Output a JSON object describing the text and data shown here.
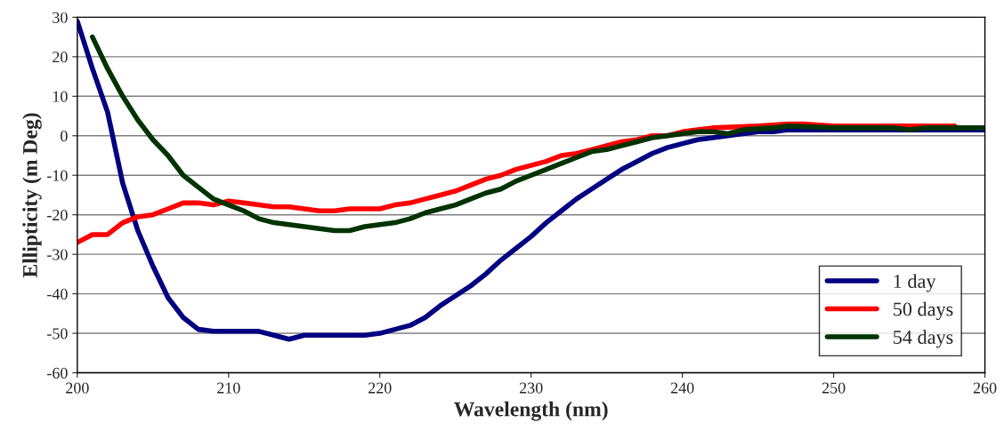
{
  "chart_data": {
    "type": "line",
    "xlabel": "Wavelength (nm)",
    "ylabel": "Ellipticity (m Deg)",
    "xlim": [
      200,
      260
    ],
    "xticks": [
      200,
      210,
      220,
      230,
      240,
      250,
      260
    ],
    "ylim": [
      -60,
      30
    ],
    "yticks": [
      -60,
      -50,
      -40,
      -30,
      -20,
      -10,
      0,
      10,
      20,
      30
    ],
    "grid": "y",
    "legend": "bottom right",
    "line_style": "solid",
    "marker": "none",
    "series": [
      {
        "name": "1 day",
        "color": "#000080",
        "x": [
          200,
          201,
          202,
          203,
          204,
          205,
          206,
          207,
          208,
          209,
          210,
          211,
          212,
          213,
          214,
          215,
          216,
          217,
          218,
          219,
          220,
          221,
          222,
          223,
          224,
          225,
          226,
          227,
          228,
          229,
          230,
          231,
          232,
          233,
          234,
          235,
          236,
          237,
          238,
          239,
          240,
          241,
          242,
          243,
          244,
          245,
          246,
          247,
          248,
          250,
          255,
          258,
          260
        ],
        "values": [
          29,
          17,
          6,
          -12,
          -24,
          -33,
          -41,
          -46,
          -49,
          -49.5,
          -49.5,
          -49.5,
          -49.5,
          -50.5,
          -51.5,
          -50.5,
          -50.5,
          -50.5,
          -50.5,
          -50.5,
          -50,
          -49,
          -48,
          -46,
          -43,
          -40.5,
          -38,
          -35,
          -31.5,
          -28.5,
          -25.5,
          -22,
          -19,
          -16,
          -13.5,
          -11,
          -8.5,
          -6.5,
          -4.5,
          -3,
          -2,
          -1,
          -0.5,
          0,
          0.5,
          1,
          1,
          1.5,
          1.5,
          1.5,
          1.5,
          1.5,
          1.5
        ]
      },
      {
        "name": "50 days",
        "color": "#ff0000",
        "x": [
          200,
          201,
          202,
          203,
          204,
          205,
          206,
          207,
          208,
          209,
          210,
          211,
          212,
          213,
          214,
          215,
          216,
          217,
          218,
          219,
          220,
          221,
          222,
          223,
          224,
          225,
          226,
          227,
          228,
          229,
          230,
          231,
          232,
          233,
          234,
          235,
          236,
          237,
          238,
          239,
          240,
          241,
          242,
          245,
          247,
          248,
          250,
          255,
          258
        ],
        "values": [
          -27,
          -25,
          -25,
          -22,
          -20.5,
          -20,
          -18.5,
          -17,
          -17,
          -17.5,
          -16.5,
          -17,
          -17.5,
          -18,
          -18,
          -18.5,
          -19,
          -19,
          -18.5,
          -18.5,
          -18.5,
          -17.5,
          -17,
          -16,
          -15,
          -14,
          -12.5,
          -11,
          -10,
          -8.5,
          -7.5,
          -6.5,
          -5,
          -4.5,
          -3.5,
          -2.5,
          -1.5,
          -1,
          0,
          0,
          1,
          1.5,
          2,
          2.5,
          3,
          3,
          2.5,
          2.5,
          2.5
        ]
      },
      {
        "name": "54 days",
        "color": "#003300",
        "x": [
          201,
          202,
          203,
          204,
          205,
          206,
          207,
          208,
          209,
          210,
          211,
          212,
          213,
          214,
          215,
          216,
          217,
          218,
          219,
          220,
          221,
          222,
          223,
          224,
          225,
          226,
          227,
          228,
          229,
          230,
          231,
          232,
          233,
          234,
          235,
          236,
          237,
          238,
          239,
          240,
          241,
          242,
          243,
          244,
          246,
          247,
          250,
          254,
          255,
          256,
          260
        ],
        "values": [
          25,
          17,
          10,
          4,
          -1,
          -5,
          -10,
          -13,
          -16,
          -17.5,
          -19,
          -21,
          -22,
          -22.5,
          -23,
          -23.5,
          -24,
          -24,
          -23,
          -22.5,
          -22,
          -21,
          -19.5,
          -18.5,
          -17.5,
          -16,
          -14.5,
          -13.5,
          -11.5,
          -10,
          -8.5,
          -7,
          -5.5,
          -4,
          -3.5,
          -2.5,
          -1.5,
          -0.5,
          0,
          0.5,
          1,
          1,
          0.5,
          1.5,
          2,
          2.5,
          2,
          2,
          1.5,
          2,
          2
        ]
      }
    ]
  }
}
